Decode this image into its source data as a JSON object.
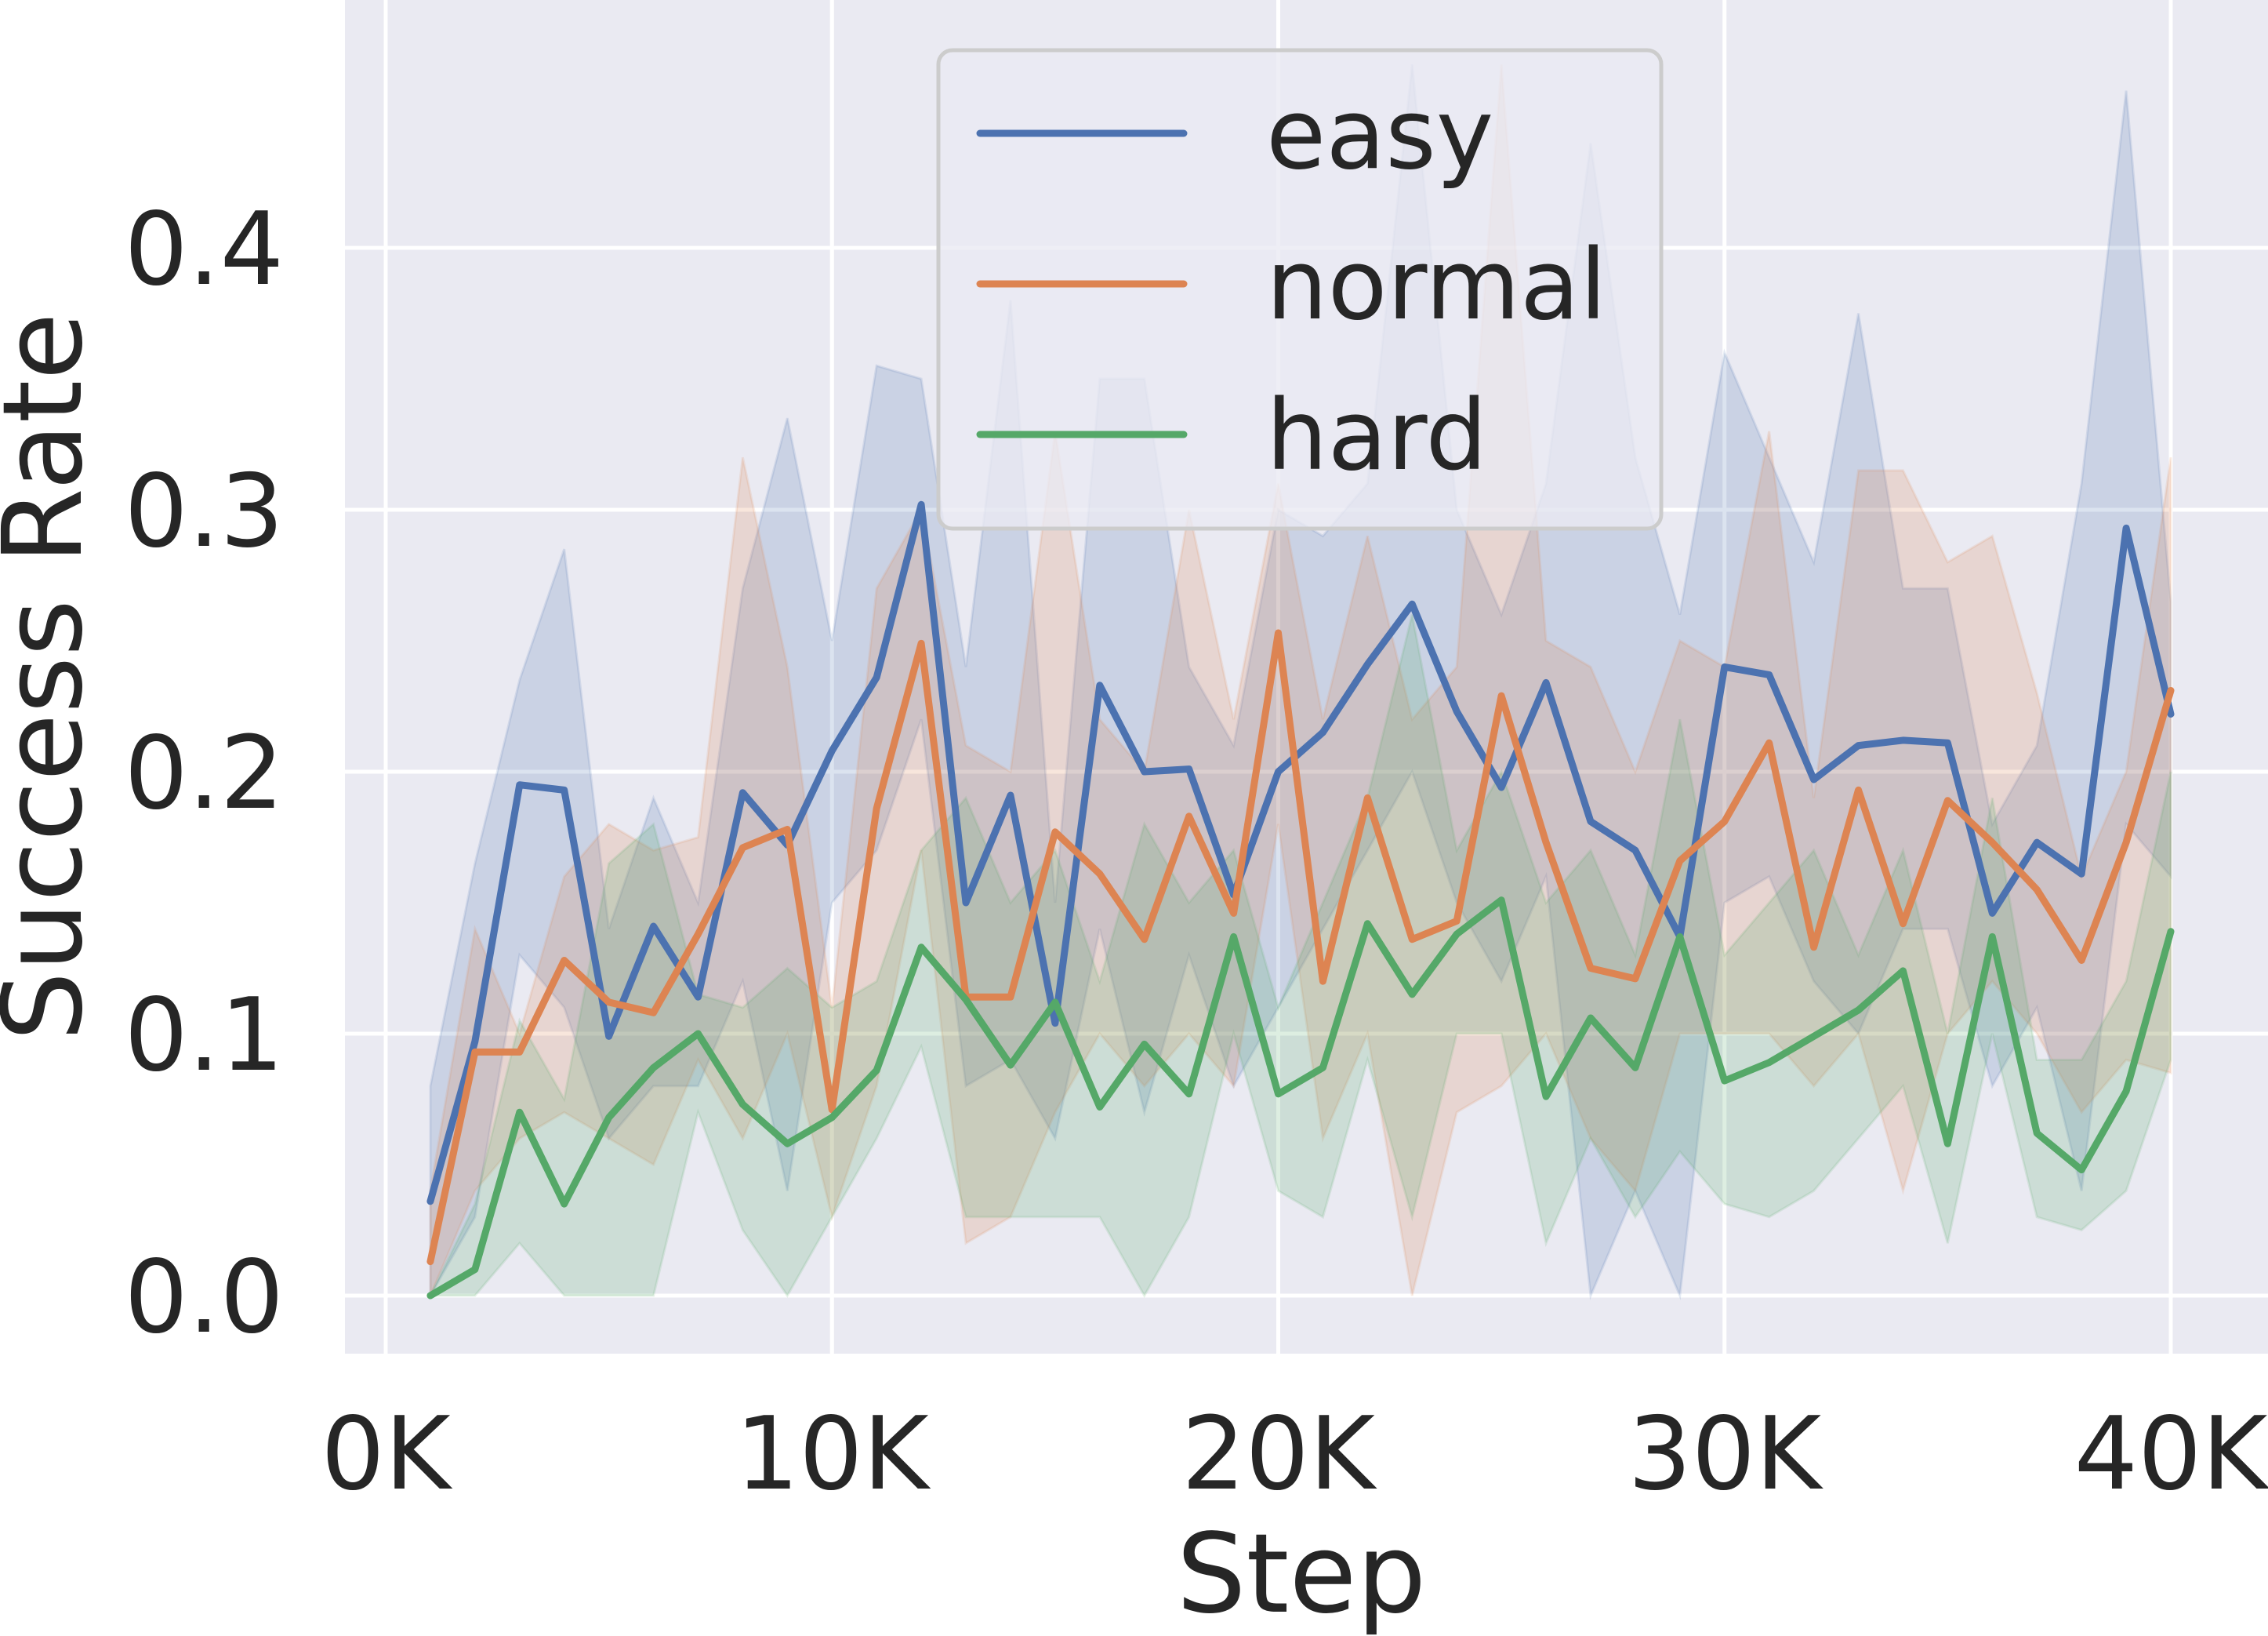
{
  "chart_data": {
    "type": "line",
    "xlabel": "Step",
    "ylabel": "Success Rate",
    "xlim": [
      0,
      41000
    ],
    "ylim": [
      -0.02,
      0.495
    ],
    "x_ticks": [
      0,
      10000,
      20000,
      30000,
      40000
    ],
    "x_tick_labels": [
      "0K",
      "10K",
      "20K",
      "30K",
      "40K"
    ],
    "y_ticks": [
      0.0,
      0.1,
      0.2,
      0.3,
      0.4
    ],
    "y_tick_labels": [
      "0.0",
      "0.1",
      "0.2",
      "0.3",
      "0.4"
    ],
    "grid": true,
    "legend_position": "top-center",
    "x": [
      1000,
      2000,
      3000,
      4000,
      5000,
      6000,
      7000,
      8000,
      9000,
      10000,
      11000,
      12000,
      13000,
      14000,
      15000,
      16000,
      17000,
      18000,
      19000,
      20000,
      21000,
      22000,
      23000,
      24000,
      25000,
      26000,
      27000,
      28000,
      29000,
      30000,
      31000,
      32000,
      33000,
      34000,
      35000,
      36000,
      37000,
      38000,
      39000,
      40000
    ],
    "series": [
      {
        "name": "easy",
        "color": "#4c72b0",
        "values": [
          0.036,
          0.097,
          0.195,
          0.193,
          0.099,
          0.141,
          0.114,
          0.192,
          0.172,
          0.208,
          0.236,
          0.302,
          0.15,
          0.191,
          0.104,
          0.233,
          0.2,
          0.201,
          0.153,
          0.2,
          0.215,
          0.241,
          0.264,
          0.223,
          0.194,
          0.234,
          0.181,
          0.17,
          0.137,
          0.24,
          0.237,
          0.197,
          0.21,
          0.212,
          0.211,
          0.146,
          0.173,
          0.161,
          0.293,
          0.222
        ],
        "lower": [
          0.0,
          0.03,
          0.13,
          0.11,
          0.06,
          0.08,
          0.08,
          0.12,
          0.04,
          0.15,
          0.17,
          0.22,
          0.08,
          0.09,
          0.06,
          0.14,
          0.07,
          0.13,
          0.08,
          0.11,
          0.14,
          0.17,
          0.2,
          0.15,
          0.12,
          0.16,
          0.0,
          0.04,
          0.0,
          0.15,
          0.16,
          0.12,
          0.1,
          0.14,
          0.14,
          0.08,
          0.11,
          0.04,
          0.18,
          0.16
        ],
        "upper": [
          0.08,
          0.165,
          0.235,
          0.285,
          0.14,
          0.19,
          0.15,
          0.27,
          0.335,
          0.25,
          0.355,
          0.35,
          0.24,
          0.38,
          0.15,
          0.35,
          0.35,
          0.24,
          0.21,
          0.3,
          0.29,
          0.31,
          0.47,
          0.3,
          0.26,
          0.31,
          0.44,
          0.32,
          0.26,
          0.36,
          0.32,
          0.28,
          0.375,
          0.27,
          0.27,
          0.18,
          0.21,
          0.31,
          0.46,
          0.265
        ]
      },
      {
        "name": "normal",
        "color": "#dd8452",
        "values": [
          0.013,
          0.093,
          0.093,
          0.128,
          0.112,
          0.108,
          0.138,
          0.171,
          0.178,
          0.071,
          0.186,
          0.249,
          0.114,
          0.114,
          0.177,
          0.161,
          0.136,
          0.183,
          0.146,
          0.253,
          0.12,
          0.19,
          0.136,
          0.143,
          0.229,
          0.173,
          0.125,
          0.121,
          0.166,
          0.181,
          0.211,
          0.133,
          0.193,
          0.142,
          0.189,
          0.173,
          0.155,
          0.128,
          0.173,
          0.231
        ],
        "lower": [
          0.0,
          0.04,
          0.06,
          0.07,
          0.06,
          0.05,
          0.09,
          0.06,
          0.1,
          0.03,
          0.08,
          0.17,
          0.02,
          0.03,
          0.07,
          0.1,
          0.08,
          0.1,
          0.08,
          0.18,
          0.06,
          0.1,
          0.0,
          0.07,
          0.08,
          0.1,
          0.06,
          0.04,
          0.1,
          0.1,
          0.1,
          0.08,
          0.1,
          0.04,
          0.1,
          0.12,
          0.1,
          0.07,
          0.09,
          0.085
        ],
        "upper": [
          0.04,
          0.14,
          0.1,
          0.16,
          0.18,
          0.17,
          0.175,
          0.32,
          0.24,
          0.11,
          0.27,
          0.3,
          0.21,
          0.2,
          0.33,
          0.22,
          0.2,
          0.3,
          0.22,
          0.31,
          0.22,
          0.29,
          0.22,
          0.24,
          0.47,
          0.25,
          0.24,
          0.2,
          0.25,
          0.24,
          0.33,
          0.19,
          0.315,
          0.315,
          0.28,
          0.29,
          0.23,
          0.16,
          0.2,
          0.32
        ]
      },
      {
        "name": "hard",
        "color": "#55a868",
        "values": [
          0.0,
          0.01,
          0.07,
          0.035,
          0.068,
          0.087,
          0.1,
          0.073,
          0.058,
          0.068,
          0.086,
          0.133,
          0.113,
          0.088,
          0.112,
          0.072,
          0.096,
          0.077,
          0.137,
          0.077,
          0.087,
          0.142,
          0.115,
          0.138,
          0.151,
          0.076,
          0.106,
          0.087,
          0.137,
          0.082,
          0.089,
          0.099,
          0.109,
          0.124,
          0.058,
          0.137,
          0.062,
          0.048,
          0.078,
          0.139
        ],
        "lower": [
          0.0,
          0.0,
          0.02,
          0.0,
          0.0,
          0.0,
          0.07,
          0.025,
          0.0,
          0.03,
          0.06,
          0.095,
          0.03,
          0.03,
          0.03,
          0.03,
          0.0,
          0.03,
          0.1,
          0.04,
          0.03,
          0.09,
          0.03,
          0.1,
          0.1,
          0.02,
          0.06,
          0.03,
          0.055,
          0.035,
          0.03,
          0.04,
          0.06,
          0.08,
          0.02,
          0.1,
          0.03,
          0.025,
          0.04,
          0.09
        ],
        "upper": [
          0.0,
          0.035,
          0.105,
          0.075,
          0.165,
          0.18,
          0.115,
          0.11,
          0.125,
          0.11,
          0.12,
          0.17,
          0.19,
          0.15,
          0.17,
          0.12,
          0.18,
          0.15,
          0.17,
          0.11,
          0.15,
          0.19,
          0.26,
          0.17,
          0.2,
          0.15,
          0.17,
          0.13,
          0.22,
          0.13,
          0.15,
          0.17,
          0.13,
          0.17,
          0.1,
          0.19,
          0.09,
          0.09,
          0.12,
          0.2
        ]
      }
    ]
  }
}
